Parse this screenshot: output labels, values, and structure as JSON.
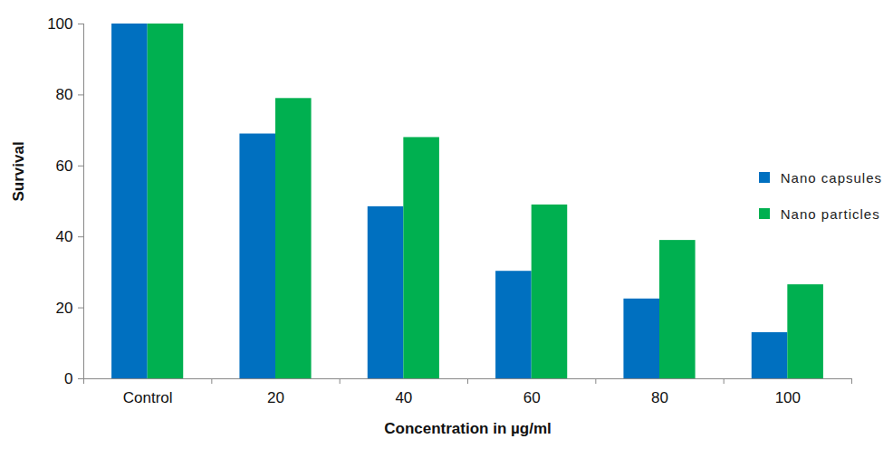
{
  "chart_data": {
    "type": "bar",
    "xlabel": "Concentration in µg/ml",
    "ylabel": "Survival",
    "categories": [
      "Control",
      "20",
      "40",
      "60",
      "80",
      "100"
    ],
    "series": [
      {
        "name": "Nano capsules",
        "color": "#0070c0",
        "values": [
          100,
          69,
          48.5,
          30.3,
          22.5,
          13
        ]
      },
      {
        "name": "Nano particles",
        "color": "#00b050",
        "values": [
          100,
          79,
          68,
          49,
          39,
          26.5
        ]
      }
    ],
    "ylim": [
      0,
      100
    ],
    "yticks": [
      0,
      20,
      40,
      60,
      80,
      100
    ],
    "grid": false,
    "legend": "right"
  }
}
